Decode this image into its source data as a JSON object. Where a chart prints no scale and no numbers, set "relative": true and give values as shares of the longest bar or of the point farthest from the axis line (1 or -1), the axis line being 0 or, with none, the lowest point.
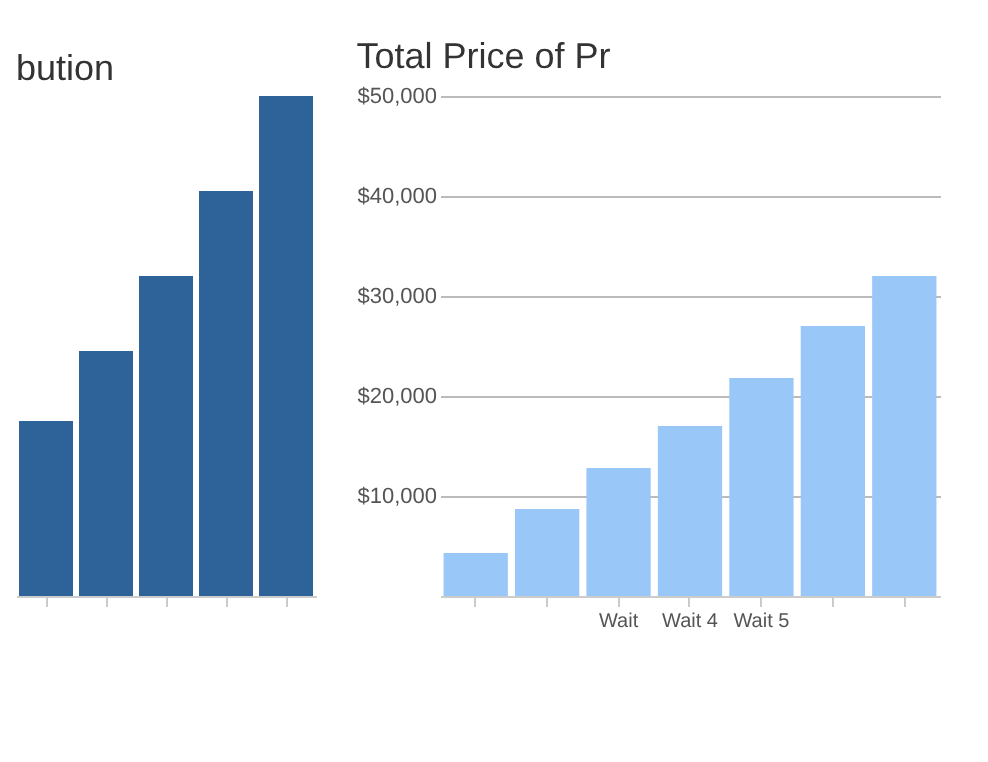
{
  "chart_data": [
    {
      "type": "bar",
      "title": "bution",
      "relative": true,
      "categories": [
        null,
        null,
        null,
        null,
        null
      ],
      "values": [
        0.35,
        0.49,
        0.64,
        0.81,
        1
      ],
      "color": "#2e6399"
    },
    {
      "type": "bar",
      "title": "Total Price of Pr",
      "categories": [
        null,
        null,
        "Wait",
        "Wait 4",
        "Wait 5",
        null,
        null
      ],
      "values": [
        4300,
        8700,
        12800,
        17000,
        21800,
        27000,
        32000
      ],
      "color": "#99c7f7",
      "ylim": [
        0,
        50000
      ],
      "yticks": [
        {
          "value": 0,
          "label": null
        },
        {
          "value": 10000,
          "label": "$10,000"
        },
        {
          "value": 20000,
          "label": "$20,000"
        },
        {
          "value": 30000,
          "label": "$30,000"
        },
        {
          "value": 40000,
          "label": "$40,000"
        },
        {
          "value": 50000,
          "label": "$50,000"
        }
      ],
      "grid": "y"
    }
  ]
}
